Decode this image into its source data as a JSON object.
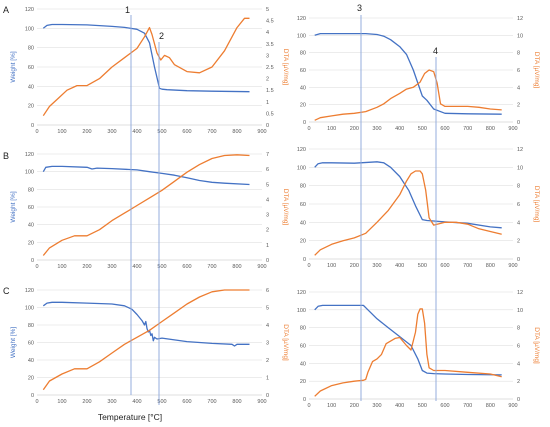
{
  "figure": {
    "panel_letters": [
      "A",
      "B",
      "C"
    ],
    "markers": [
      "1",
      "2",
      "3",
      "4"
    ],
    "xlabel": "Temperature [°C]",
    "colors": {
      "weight": "#4472C4",
      "dta": "#ED7D31",
      "vline": "#8EA9DB",
      "grid": "#D9D9D9",
      "axis": "#BFBFBF"
    }
  },
  "chart_data": [
    {
      "type": "line",
      "panel": "A-left",
      "ylabel": "Weight [%]",
      "y2label": "DTA [µV/mg]",
      "xlim": [
        0,
        900
      ],
      "xticks": [
        0,
        100,
        200,
        300,
        400,
        500,
        600,
        700,
        800,
        900
      ],
      "ylim": [
        0,
        120
      ],
      "yticks": [
        0,
        20,
        40,
        60,
        80,
        100,
        120
      ],
      "y2lim": [
        0,
        5
      ],
      "y2ticks": [
        0,
        0.5,
        1,
        1.5,
        2,
        2.5,
        3,
        3.5,
        4,
        4.5,
        5
      ],
      "grid": "horizontal",
      "series": [
        {
          "axis": "left",
          "color": "#4472C4",
          "x": [
            25,
            40,
            60,
            100,
            200,
            300,
            350,
            400,
            430,
            450,
            470,
            490,
            500,
            520,
            600,
            700,
            850
          ],
          "y": [
            100,
            103,
            104,
            104,
            103.5,
            102,
            101,
            99,
            95,
            85,
            60,
            38,
            37,
            36.5,
            35.5,
            35,
            34.5
          ]
        },
        {
          "axis": "right",
          "color": "#ED7D31",
          "x": [
            25,
            50,
            80,
            120,
            160,
            200,
            250,
            300,
            350,
            400,
            430,
            450,
            460,
            480,
            495,
            510,
            530,
            550,
            600,
            650,
            700,
            750,
            800,
            830,
            850
          ],
          "y": [
            0.4,
            0.8,
            1.1,
            1.5,
            1.7,
            1.7,
            2.0,
            2.5,
            2.9,
            3.3,
            3.8,
            4.2,
            3.9,
            3.1,
            2.8,
            3.0,
            2.9,
            2.6,
            2.3,
            2.25,
            2.5,
            3.2,
            4.2,
            4.6,
            4.6
          ]
        }
      ]
    },
    {
      "type": "line",
      "panel": "A-right",
      "ylabel": "",
      "y2label": "DTA [µV/mg]",
      "xlim": [
        0,
        900
      ],
      "xticks": [
        0,
        100,
        200,
        300,
        400,
        500,
        600,
        700,
        800,
        900
      ],
      "ylim": [
        0,
        120
      ],
      "yticks": [
        0,
        20,
        40,
        60,
        80,
        100,
        120
      ],
      "y2lim": [
        0,
        12
      ],
      "y2ticks": [
        0,
        2,
        4,
        6,
        8,
        10,
        12
      ],
      "grid": "horizontal",
      "series": [
        {
          "axis": "left",
          "color": "#4472C4",
          "x": [
            25,
            50,
            100,
            200,
            250,
            300,
            330,
            360,
            400,
            430,
            460,
            480,
            500,
            520,
            550,
            600,
            700,
            850
          ],
          "y": [
            100,
            102,
            102,
            102,
            102,
            101,
            99,
            95,
            87,
            78,
            60,
            45,
            30,
            25,
            15,
            10,
            9.5,
            9
          ]
        },
        {
          "axis": "right",
          "color": "#ED7D31",
          "x": [
            25,
            50,
            100,
            150,
            200,
            250,
            300,
            330,
            360,
            400,
            430,
            460,
            490,
            510,
            530,
            550,
            565,
            580,
            600,
            650,
            700,
            750,
            800,
            850
          ],
          "y": [
            0.2,
            0.5,
            0.7,
            0.9,
            1.0,
            1.2,
            1.7,
            2.1,
            2.7,
            3.3,
            3.8,
            4.0,
            4.6,
            5.6,
            6.0,
            5.8,
            4.5,
            2.1,
            1.8,
            1.8,
            1.8,
            1.7,
            1.5,
            1.4
          ]
        }
      ]
    },
    {
      "type": "line",
      "panel": "B-left",
      "ylabel": "Weight [%]",
      "y2label": "DTA [µV/mg]",
      "xlim": [
        0,
        900
      ],
      "xticks": [
        0,
        100,
        200,
        300,
        400,
        500,
        600,
        700,
        800,
        900
      ],
      "ylim": [
        0,
        120
      ],
      "yticks": [
        0,
        20,
        40,
        60,
        80,
        100,
        120
      ],
      "y2lim": [
        0,
        7
      ],
      "y2ticks": [
        0,
        1,
        2,
        3,
        4,
        5,
        6,
        7
      ],
      "grid": "horizontal",
      "series": [
        {
          "axis": "left",
          "color": "#4472C4",
          "x": [
            25,
            35,
            60,
            100,
            200,
            220,
            240,
            300,
            400,
            450,
            500,
            550,
            600,
            650,
            700,
            750,
            850
          ],
          "y": [
            100,
            105,
            106,
            106,
            105,
            103,
            104,
            103.5,
            102,
            100,
            98,
            96,
            93,
            90,
            88,
            87,
            85.5
          ]
        },
        {
          "axis": "right",
          "color": "#ED7D31",
          "x": [
            25,
            50,
            100,
            150,
            200,
            250,
            300,
            350,
            400,
            450,
            500,
            550,
            600,
            650,
            700,
            750,
            800,
            850
          ],
          "y": [
            0.3,
            0.8,
            1.3,
            1.6,
            1.6,
            2.0,
            2.6,
            3.1,
            3.6,
            4.1,
            4.6,
            5.2,
            5.8,
            6.3,
            6.7,
            6.9,
            6.95,
            6.9
          ]
        }
      ]
    },
    {
      "type": "line",
      "panel": "B-right",
      "ylabel": "",
      "y2label": "DTA [µV/mg]",
      "xlim": [
        0,
        900
      ],
      "xticks": [
        0,
        100,
        200,
        300,
        400,
        500,
        600,
        700,
        800,
        900
      ],
      "ylim": [
        0,
        120
      ],
      "yticks": [
        0,
        20,
        40,
        60,
        80,
        100,
        120
      ],
      "y2lim": [
        0,
        12
      ],
      "y2ticks": [
        0,
        2,
        4,
        6,
        8,
        10,
        12
      ],
      "grid": "horizontal",
      "series": [
        {
          "axis": "left",
          "color": "#4472C4",
          "x": [
            25,
            40,
            60,
            100,
            200,
            300,
            330,
            360,
            400,
            440,
            470,
            500,
            520,
            550,
            600,
            700,
            800,
            850
          ],
          "y": [
            100,
            104,
            105,
            105,
            104.5,
            106,
            105,
            100,
            90,
            75,
            58,
            43,
            42,
            41.5,
            40.5,
            39,
            35,
            34
          ]
        },
        {
          "axis": "right",
          "color": "#ED7D31",
          "x": [
            25,
            50,
            100,
            150,
            200,
            250,
            300,
            350,
            400,
            430,
            450,
            470,
            490,
            500,
            515,
            530,
            550,
            600,
            650,
            700,
            750,
            800,
            850
          ],
          "y": [
            0.4,
            1.0,
            1.6,
            2.0,
            2.3,
            2.8,
            4.0,
            5.3,
            7.0,
            8.5,
            9.3,
            9.6,
            9.6,
            9.3,
            7.5,
            4.5,
            3.7,
            4.0,
            4.0,
            3.8,
            3.3,
            3.0,
            2.7
          ]
        }
      ]
    },
    {
      "type": "line",
      "panel": "C-left",
      "ylabel": "Weight [%]",
      "y2label": "DTA [µV/mg]",
      "xlim": [
        0,
        900
      ],
      "xticks": [
        0,
        100,
        200,
        300,
        400,
        500,
        600,
        700,
        800,
        900
      ],
      "ylim": [
        0,
        120
      ],
      "yticks": [
        0,
        20,
        40,
        60,
        80,
        100,
        120
      ],
      "y2lim": [
        0,
        6
      ],
      "y2ticks": [
        0,
        1,
        2,
        3,
        4,
        5,
        6
      ],
      "grid": "horizontal",
      "series": [
        {
          "axis": "left",
          "color": "#4472C4",
          "x": [
            25,
            40,
            60,
            100,
            200,
            300,
            350,
            380,
            400,
            420,
            430,
            435,
            440,
            445,
            450,
            455,
            460,
            465,
            470,
            480,
            500,
            550,
            600,
            700,
            780,
            790,
            800,
            850
          ],
          "y": [
            102,
            105,
            106,
            106,
            105,
            104,
            102,
            98,
            92,
            85,
            80,
            84,
            76,
            72,
            74,
            68,
            70,
            62,
            66,
            64,
            65,
            63,
            61,
            59,
            58,
            56,
            58,
            58
          ]
        },
        {
          "axis": "right",
          "color": "#ED7D31",
          "x": [
            25,
            50,
            100,
            150,
            200,
            250,
            300,
            350,
            400,
            450,
            500,
            550,
            600,
            650,
            700,
            750,
            800,
            850
          ],
          "y": [
            0.3,
            0.8,
            1.2,
            1.5,
            1.5,
            1.9,
            2.4,
            2.9,
            3.3,
            3.7,
            4.2,
            4.7,
            5.2,
            5.6,
            5.9,
            6.0,
            6.0,
            6.0
          ]
        }
      ]
    },
    {
      "type": "line",
      "panel": "C-right",
      "ylabel": "",
      "y2label": "DTA [µV/mg]",
      "xlim": [
        0,
        900
      ],
      "xticks": [
        0,
        100,
        200,
        300,
        400,
        500,
        600,
        700,
        800,
        900
      ],
      "ylim": [
        0,
        120
      ],
      "yticks": [
        0,
        20,
        40,
        60,
        80,
        100,
        120
      ],
      "y2lim": [
        0,
        12
      ],
      "y2ticks": [
        0,
        2,
        4,
        6,
        8,
        10,
        12
      ],
      "grid": "horizontal",
      "series": [
        {
          "axis": "left",
          "color": "#4472C4",
          "x": [
            25,
            40,
            60,
            100,
            200,
            240,
            260,
            300,
            350,
            400,
            450,
            480,
            500,
            520,
            550,
            600,
            700,
            850
          ],
          "y": [
            100,
            104,
            105,
            105,
            105,
            105,
            100,
            90,
            80,
            70,
            60,
            45,
            32,
            29,
            28.5,
            28,
            27.5,
            27
          ]
        },
        {
          "axis": "right",
          "color": "#ED7D31",
          "x": [
            25,
            50,
            100,
            150,
            200,
            240,
            250,
            260,
            280,
            300,
            320,
            340,
            380,
            400,
            430,
            450,
            470,
            480,
            490,
            500,
            510,
            520,
            530,
            550,
            600,
            700,
            800,
            850
          ],
          "y": [
            0.3,
            0.9,
            1.5,
            1.8,
            2.0,
            2.1,
            2.2,
            3.0,
            4.2,
            4.5,
            5.0,
            6.2,
            6.8,
            6.9,
            6.0,
            5.5,
            7.5,
            9.5,
            10.1,
            10.1,
            8.5,
            5.0,
            3.5,
            3.2,
            3.2,
            3.0,
            2.8,
            2.5
          ]
        }
      ]
    }
  ]
}
